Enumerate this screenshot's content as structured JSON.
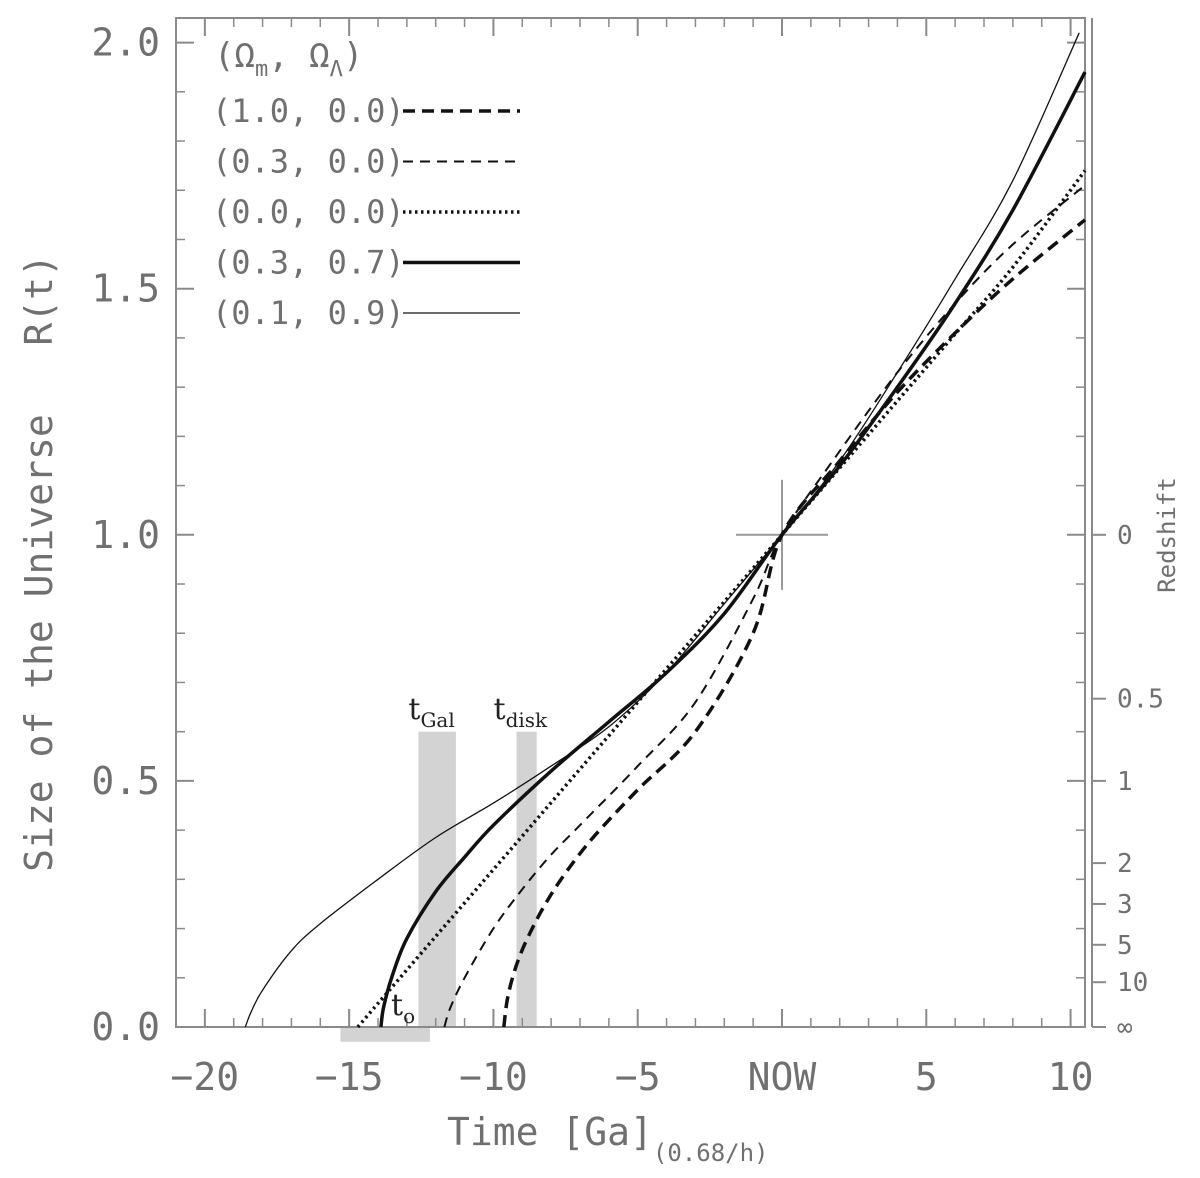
{
  "chart_data": {
    "type": "line",
    "xlabel": "Time [Ga]",
    "xlabel_sub": "(0.68/h)",
    "ylabel": "Size of the Universe   R(t)",
    "right_axis_label": "Redshift",
    "xlim": [
      -21,
      10.5
    ],
    "ylim": [
      0,
      2.05
    ],
    "x_ticks": [
      {
        "value": -20,
        "label": "−20"
      },
      {
        "value": -15,
        "label": "−15"
      },
      {
        "value": -10,
        "label": "−10"
      },
      {
        "value": -5,
        "label": "−5"
      },
      {
        "value": 0,
        "label": "NOW"
      },
      {
        "value": 5,
        "label": "5"
      },
      {
        "value": 10,
        "label": "10"
      }
    ],
    "y_ticks": [
      {
        "value": 0.0,
        "label": "0.0"
      },
      {
        "value": 0.5,
        "label": "0.5"
      },
      {
        "value": 1.0,
        "label": "1.0"
      },
      {
        "value": 1.5,
        "label": "1.5"
      },
      {
        "value": 2.0,
        "label": "2.0"
      }
    ],
    "redshift_ticks": [
      {
        "R": 1.0,
        "label": "0"
      },
      {
        "R": 0.667,
        "label": "0.5"
      },
      {
        "R": 0.5,
        "label": "1"
      },
      {
        "R": 0.333,
        "label": "2"
      },
      {
        "R": 0.25,
        "label": "3"
      },
      {
        "R": 0.167,
        "label": "5"
      },
      {
        "R": 0.091,
        "label": "10"
      },
      {
        "R": 0.0,
        "label": "∞"
      }
    ],
    "legend_header": "(Ω_m,  Ω_Λ)",
    "legend_header_parts": {
      "open": "(Ω",
      "m": "m",
      "mid": ",  Ω",
      "lam": "Λ",
      "close": ")"
    },
    "legend_position": "top-left",
    "series": [
      {
        "name": "(1.0, 0.0)",
        "style": "thick-dashed",
        "x": [
          -9.64,
          -9.5,
          -9.2,
          -8.8,
          -8.2,
          -7.5,
          -6.5,
          -5.0,
          -3.0,
          -1.0,
          0,
          2.0,
          4.0,
          6.0,
          8.0,
          10.5
        ],
        "y": [
          0.0,
          0.062,
          0.126,
          0.183,
          0.25,
          0.313,
          0.388,
          0.482,
          0.6,
          0.8,
          1.0,
          1.15,
          1.29,
          1.41,
          1.52,
          1.64
        ]
      },
      {
        "name": "(0.3, 0.0)",
        "style": "dashed",
        "x": [
          -11.7,
          -11.5,
          -11.0,
          -10.0,
          -9.0,
          -8.0,
          -7.0,
          -5.0,
          -3.0,
          -1.0,
          0,
          2.0,
          4.0,
          6.0,
          8.0,
          10.5
        ],
        "y": [
          0.0,
          0.038,
          0.1,
          0.2,
          0.28,
          0.35,
          0.41,
          0.53,
          0.66,
          0.87,
          1.0,
          1.17,
          1.33,
          1.47,
          1.59,
          1.71
        ]
      },
      {
        "name": "(0.0, 0.0)",
        "style": "dotted",
        "x": [
          -14.7,
          -14.0,
          -12.0,
          -10.0,
          -8.0,
          -6.0,
          -4.0,
          -2.0,
          0,
          2.0,
          4.0,
          6.0,
          8.0,
          10.5
        ],
        "y": [
          0.0,
          0.048,
          0.184,
          0.32,
          0.456,
          0.592,
          0.728,
          0.864,
          1.0,
          1.136,
          1.272,
          1.408,
          1.544,
          1.74
        ]
      },
      {
        "name": "(0.3, 0.7)",
        "style": "thick-solid",
        "x": [
          -13.9,
          -13.8,
          -13.5,
          -13.0,
          -12.0,
          -11.0,
          -10.0,
          -8.0,
          -6.0,
          -4.0,
          -2.0,
          0,
          2.0,
          4.0,
          6.0,
          8.0,
          10.5
        ],
        "y": [
          0.0,
          0.042,
          0.105,
          0.18,
          0.275,
          0.345,
          0.41,
          0.52,
          0.62,
          0.72,
          0.84,
          1.0,
          1.14,
          1.3,
          1.47,
          1.66,
          1.94
        ]
      },
      {
        "name": "(0.1, 0.9)",
        "style": "thin-solid",
        "x": [
          -18.6,
          -18.4,
          -18.0,
          -17.0,
          -16.0,
          -14.0,
          -12.0,
          -10.0,
          -8.0,
          -6.0,
          -4.0,
          -2.0,
          0,
          2.0,
          4.0,
          6.0,
          8.0,
          10.3
        ],
        "y": [
          0.0,
          0.03,
          0.075,
          0.155,
          0.21,
          0.3,
          0.385,
          0.455,
          0.53,
          0.61,
          0.72,
          0.86,
          1.0,
          1.15,
          1.33,
          1.52,
          1.72,
          2.02
        ]
      }
    ],
    "annotations": [
      {
        "id": "t_gal",
        "base": "t",
        "sub": "Gal",
        "x_range": [
          -12.6,
          -11.3
        ],
        "y_range": [
          0.0,
          0.6
        ]
      },
      {
        "id": "t_disk",
        "base": "t",
        "sub": "disk",
        "x_range": [
          -9.2,
          -8.5
        ],
        "y_range": [
          0.0,
          0.6
        ]
      },
      {
        "id": "t_zero",
        "label": "t",
        "sub": "o",
        "x_range": [
          -15.3,
          -12.2
        ],
        "y_range": [
          -0.03,
          0.0
        ]
      }
    ],
    "now_marker": {
      "x": 0,
      "y": 1.0
    }
  }
}
